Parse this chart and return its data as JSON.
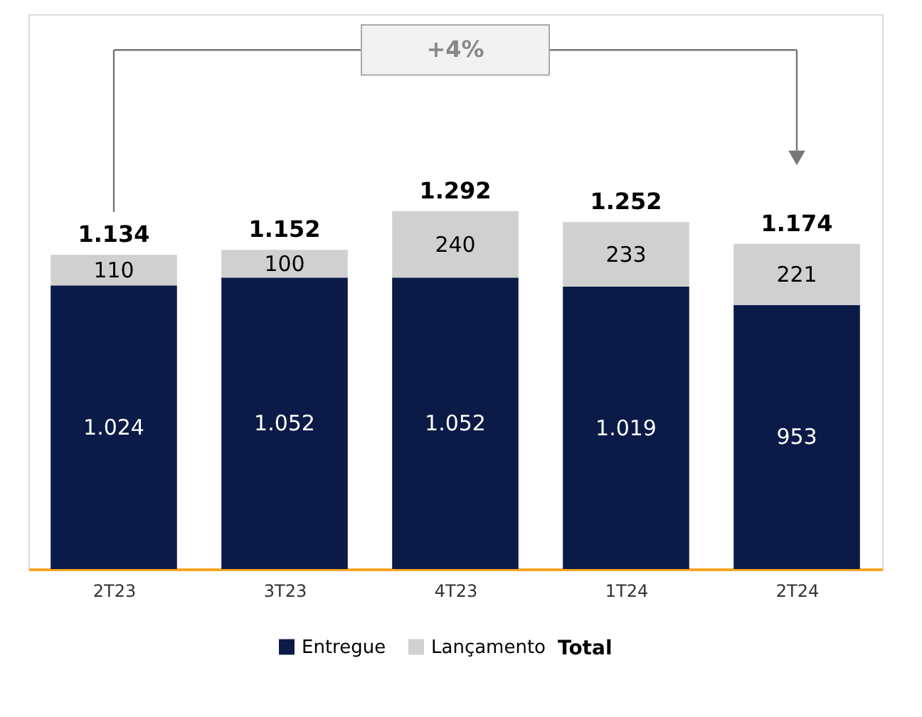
{
  "chart_data": {
    "type": "bar",
    "stacked": true,
    "categories": [
      "2T23",
      "3T23",
      "4T23",
      "1T24",
      "2T24"
    ],
    "series": [
      {
        "name": "Entregue",
        "color": "#0c1a47",
        "values": [
          1024,
          1052,
          1052,
          1019,
          953
        ],
        "value_labels": [
          "1.024",
          "1.052",
          "1.052",
          "1.019",
          "953"
        ]
      },
      {
        "name": "Lançamento",
        "color": "#d0d0d0",
        "values": [
          110,
          100,
          240,
          233,
          221
        ],
        "value_labels": [
          "110",
          "100",
          "240",
          "233",
          "221"
        ]
      }
    ],
    "totals": [
      "1.134",
      "1.152",
      "1.292",
      "1.252",
      "1.174"
    ],
    "annotations": [
      "+4%",
      "Total"
    ],
    "legend": "bottom",
    "tick_labels": "x",
    "grid": false
  }
}
